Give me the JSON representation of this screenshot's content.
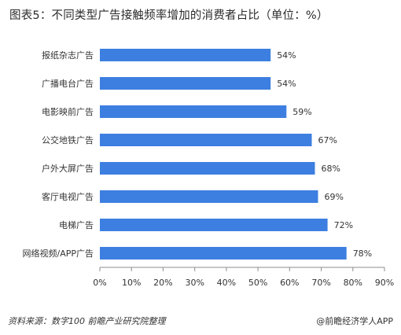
{
  "title": "图表5：不同类型广告接触频率增加的消费者占比（单位：%）",
  "footer": {
    "source": "资料来源：数字100 前瞻产业研究院整理",
    "brand": "@前瞻经济学人APP"
  },
  "colors": {
    "bar": "#3d7fe0",
    "axis": "#8c8c8c"
  },
  "chart_data": {
    "type": "bar",
    "orientation": "horizontal",
    "categories": [
      "报纸杂志广告",
      "广播电台广告",
      "电影映前广告",
      "公交地铁广告",
      "户外大屏广告",
      "客厅电视广告",
      "电梯广告",
      "网络视频/APP广告"
    ],
    "values": [
      54,
      54,
      59,
      67,
      68,
      69,
      72,
      78
    ],
    "value_labels": [
      "54%",
      "54%",
      "59%",
      "67%",
      "68%",
      "69%",
      "72%",
      "78%"
    ],
    "xticks": [
      "0%",
      "10%",
      "20%",
      "30%",
      "40%",
      "50%",
      "60%",
      "70%",
      "80%",
      "90%"
    ],
    "xlim": [
      0,
      90
    ],
    "grid": false,
    "title": "图表5：不同类型广告接触频率增加的消费者占比（单位：%）",
    "xlabel": "",
    "ylabel": ""
  }
}
